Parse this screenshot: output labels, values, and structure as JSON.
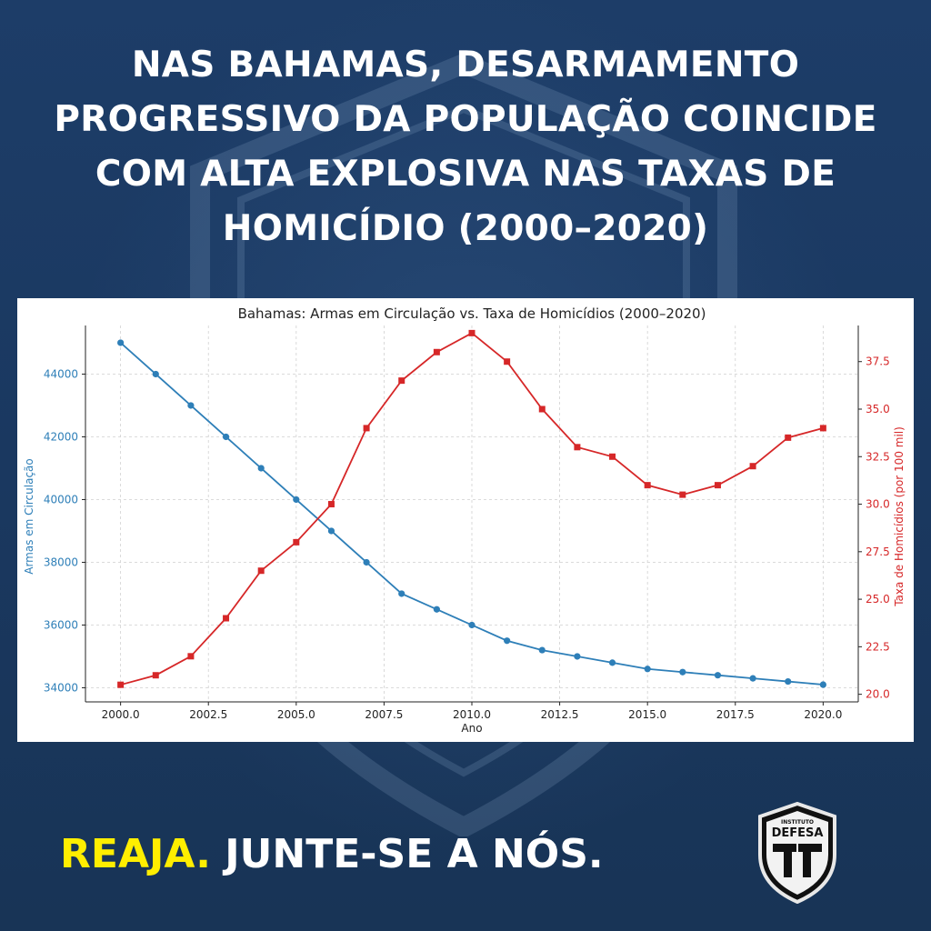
{
  "headline": {
    "lines": [
      "NAS BAHAMAS, DESARMAMENTO",
      "PROGRESSIVO DA POPULAÇÃO COINCIDE",
      "COM ALTA EXPLOSIVA NAS TAXAS DE",
      "HOMICÍDIO (2000–2020)"
    ]
  },
  "cta": {
    "highlight": "REAJA.",
    "rest": "JUNTE-SE A NÓS."
  },
  "logo": {
    "top_text": "INSTITUTO",
    "main_text": "DEFESA",
    "icon": "pistols-icon"
  },
  "colors": {
    "background": "#1b3a64",
    "cta_highlight": "#ffee00",
    "series_armas": "#2e7fb8",
    "series_homicidios": "#d62728"
  },
  "chart_data": {
    "type": "line",
    "title": "Bahamas: Armas em Circulação vs. Taxa de Homicídios (2000–2020)",
    "xlabel": "Ano",
    "ylabel_left": "Armas em Circulação",
    "ylabel_right": "Taxa de Homicídios (por 100 mil)",
    "grid": true,
    "xlim": [
      1999.0,
      2021.0
    ],
    "x_ticks": [
      2000.0,
      2002.5,
      2005.0,
      2007.5,
      2010.0,
      2012.5,
      2015.0,
      2017.5,
      2020.0
    ],
    "x_tick_labels": [
      "2000.0",
      "2002.5",
      "2005.0",
      "2007.5",
      "2010.0",
      "2012.5",
      "2015.0",
      "2017.5",
      "2020.0"
    ],
    "y_left_lim": [
      33550,
      45550
    ],
    "y_left_ticks": [
      34000,
      36000,
      38000,
      40000,
      42000,
      44000
    ],
    "y_left_tick_labels": [
      "34000",
      "36000",
      "38000",
      "40000",
      "42000",
      "44000"
    ],
    "y_right_lim": [
      19.6,
      39.4
    ],
    "y_right_ticks": [
      20.0,
      22.5,
      25.0,
      27.5,
      30.0,
      32.5,
      35.0,
      37.5
    ],
    "y_right_tick_labels": [
      "20.0",
      "22.5",
      "25.0",
      "27.5",
      "30.0",
      "32.5",
      "35.0",
      "37.5"
    ],
    "x": [
      2000,
      2001,
      2002,
      2003,
      2004,
      2005,
      2006,
      2007,
      2008,
      2009,
      2010,
      2011,
      2012,
      2013,
      2014,
      2015,
      2016,
      2017,
      2018,
      2019,
      2020
    ],
    "series": [
      {
        "axis": "left",
        "marker": "circle",
        "values": [
          45000,
          44000,
          43000,
          42000,
          41000,
          40000,
          39000,
          38000,
          37000,
          36500,
          36000,
          35500,
          35200,
          35000,
          34800,
          34600,
          34500,
          34400,
          34300,
          34200,
          34100
        ]
      },
      {
        "axis": "right",
        "marker": "square",
        "values": [
          20.5,
          21.0,
          22.0,
          24.0,
          26.5,
          28.0,
          30.0,
          34.0,
          36.5,
          38.0,
          39.0,
          37.5,
          35.0,
          33.0,
          32.5,
          31.0,
          30.5,
          31.0,
          32.0,
          33.5,
          34.0
        ]
      }
    ]
  }
}
